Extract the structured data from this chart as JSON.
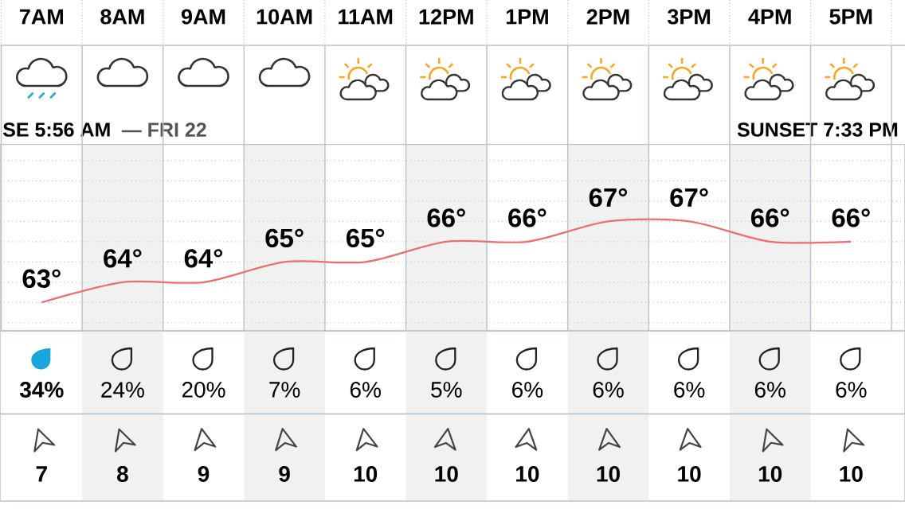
{
  "chart_data": [
    {
      "type": "line",
      "categories": [
        "7AM",
        "8AM",
        "9AM",
        "10AM",
        "11AM",
        "12PM",
        "1PM",
        "2PM",
        "3PM",
        "4PM",
        "5PM"
      ],
      "values": [
        63,
        64,
        64,
        65,
        65,
        66,
        66,
        67,
        67,
        66,
        66
      ],
      "value_labels": [
        "63°",
        "64°",
        "64°",
        "65°",
        "65°",
        "66°",
        "66°",
        "67°",
        "67°",
        "66°",
        "66°"
      ],
      "color": "#ee6e6e",
      "grid": true,
      "bands": [
        {
          "axis": "x",
          "from": "8AM",
          "to": "8AM",
          "color": "#f1f1f1"
        },
        {
          "axis": "x",
          "from": "10AM",
          "to": "10AM",
          "color": "#f1f1f1"
        },
        {
          "axis": "x",
          "from": "12PM",
          "to": "12PM",
          "color": "#f1f1f1"
        },
        {
          "axis": "x",
          "from": "2PM",
          "to": "2PM",
          "color": "#f1f1f1"
        },
        {
          "axis": "x",
          "from": "4PM",
          "to": "4PM",
          "color": "#f1f1f1"
        }
      ],
      "annotations": [
        "SE 5:56 AM",
        "— FRI 22",
        "SUNSET 7:33 PM"
      ]
    },
    {
      "type": "other",
      "values": [
        34,
        24,
        20,
        7,
        6,
        5,
        6,
        6,
        6,
        6,
        6
      ],
      "value_labels": [
        "34%",
        "24%",
        "20%",
        "7%",
        "6%",
        "5%",
        "6%",
        "6%",
        "6%",
        "6%",
        "6%"
      ]
    },
    {
      "type": "other",
      "values": [
        7,
        8,
        9,
        9,
        10,
        10,
        10,
        10,
        10,
        10,
        10
      ],
      "data_labels": true
    }
  ]
}
